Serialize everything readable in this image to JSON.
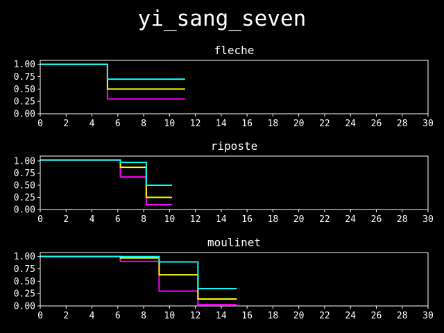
{
  "figure_title": "yi_sang_seven",
  "colors": {
    "background": "#000000",
    "axes": "#ffffff",
    "text": "#ffffff"
  },
  "chart_data": [
    {
      "type": "line",
      "step": "post",
      "title": "fleche",
      "xlim": [
        0,
        30
      ],
      "ylim": [
        0,
        1.08
      ],
      "xticks": [
        "0",
        "2",
        "4",
        "6",
        "8",
        "10",
        "12",
        "14",
        "16",
        "18",
        "20",
        "22",
        "24",
        "26",
        "28",
        "30"
      ],
      "yticks": [
        "0.00",
        "0.25",
        "0.50",
        "0.75",
        "1.00"
      ],
      "grid": false,
      "series": [
        {
          "color": "#ff00ff",
          "x": [
            0,
            5.2,
            11.2
          ],
          "y": [
            1.0,
            0.3,
            0.3
          ]
        },
        {
          "color": "#ffff00",
          "x": [
            0,
            5.2,
            11.2
          ],
          "y": [
            1.0,
            0.5,
            0.5
          ]
        },
        {
          "color": "#00ffff",
          "x": [
            0,
            5.2,
            11.2
          ],
          "y": [
            1.0,
            0.7,
            0.7
          ]
        }
      ]
    },
    {
      "type": "line",
      "step": "post",
      "title": "riposte",
      "xlim": [
        0,
        30
      ],
      "ylim": [
        0,
        1.1
      ],
      "xticks": [
        "0",
        "2",
        "4",
        "6",
        "8",
        "10",
        "12",
        "14",
        "16",
        "18",
        "20",
        "22",
        "24",
        "26",
        "28",
        "30"
      ],
      "yticks": [
        "0.00",
        "0.25",
        "0.50",
        "0.75",
        "1.00"
      ],
      "grid": false,
      "series": [
        {
          "color": "#ff00ff",
          "x": [
            0,
            6.2,
            8.2,
            10.2
          ],
          "y": [
            1.02,
            0.67,
            0.1,
            0.1
          ]
        },
        {
          "color": "#ffff00",
          "x": [
            0,
            6.2,
            8.2,
            10.2
          ],
          "y": [
            1.02,
            0.87,
            0.25,
            0.25
          ]
        },
        {
          "color": "#00ffff",
          "x": [
            0,
            6.2,
            8.2,
            10.2
          ],
          "y": [
            1.02,
            0.97,
            0.5,
            0.5
          ]
        }
      ]
    },
    {
      "type": "line",
      "step": "post",
      "title": "moulinet",
      "xlim": [
        0,
        30
      ],
      "ylim": [
        0,
        1.08
      ],
      "xticks": [
        "0",
        "2",
        "4",
        "6",
        "8",
        "10",
        "12",
        "14",
        "16",
        "18",
        "20",
        "22",
        "24",
        "26",
        "28",
        "30"
      ],
      "yticks": [
        "0.00",
        "0.25",
        "0.50",
        "0.75",
        "1.00"
      ],
      "grid": false,
      "series": [
        {
          "color": "#ff00ff",
          "x": [
            0,
            6.2,
            9.2,
            12.2,
            15.2
          ],
          "y": [
            1.0,
            0.9,
            0.3,
            0.03,
            0.03
          ]
        },
        {
          "color": "#ffff00",
          "x": [
            0,
            6.2,
            9.2,
            12.2,
            15.2
          ],
          "y": [
            1.0,
            0.97,
            0.63,
            0.14,
            0.14
          ]
        },
        {
          "color": "#00ffff",
          "x": [
            0,
            9.2,
            12.2,
            15.2
          ],
          "y": [
            1.0,
            0.89,
            0.35,
            0.35
          ]
        }
      ]
    }
  ]
}
